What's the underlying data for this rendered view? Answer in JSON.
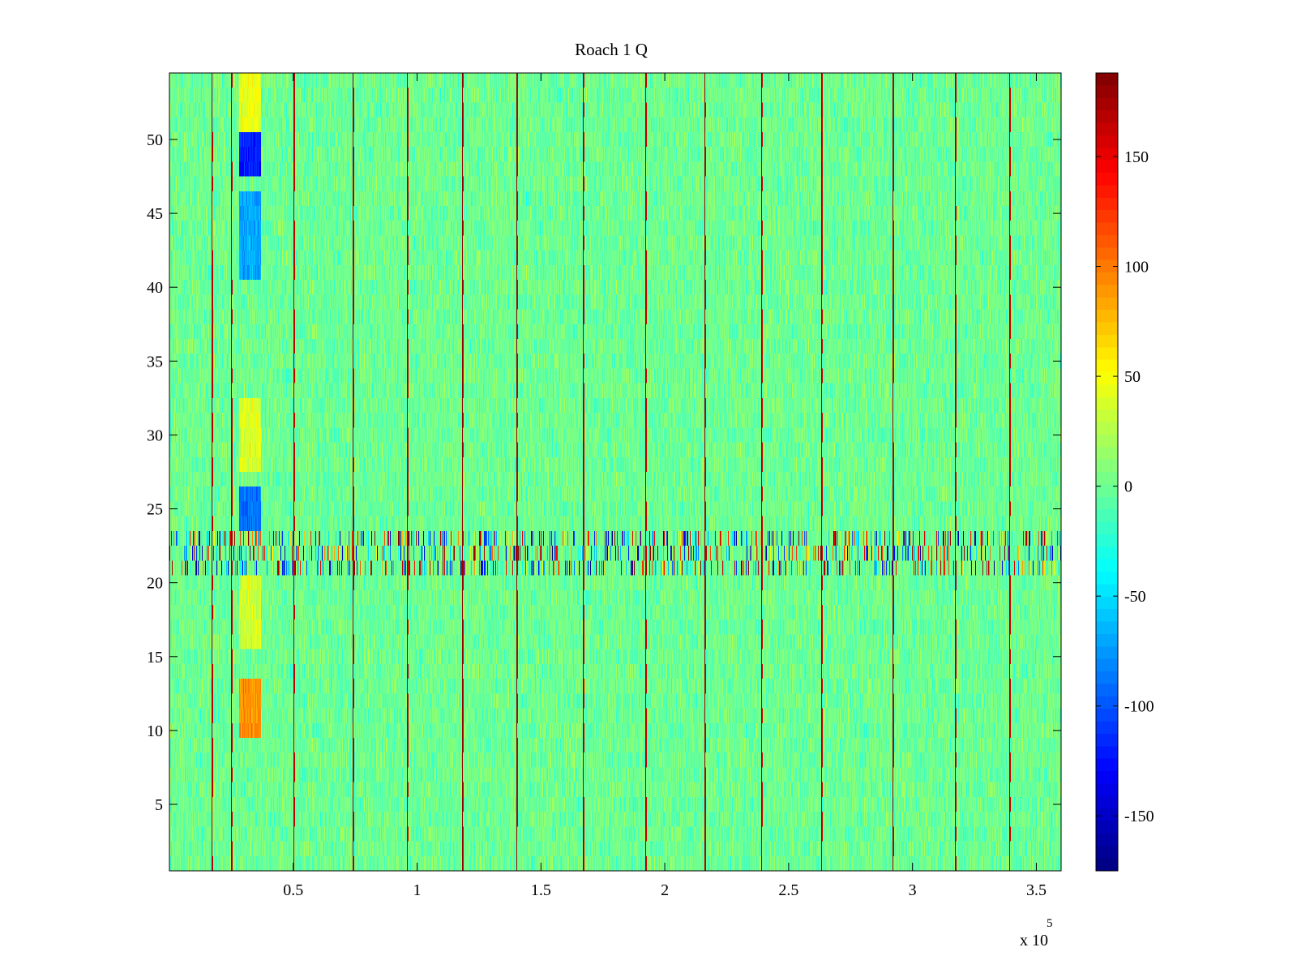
{
  "chart_data": {
    "type": "heatmap",
    "title": "Roach 1 Q",
    "xlabel": "",
    "ylabel": "",
    "x_range": [
      0,
      360000
    ],
    "y_range": [
      0.5,
      54.5
    ],
    "x_exponent_label": "x 10",
    "x_exponent_power": "5",
    "x_ticks": [
      {
        "value": 50000,
        "label": "0.5"
      },
      {
        "value": 100000,
        "label": "1"
      },
      {
        "value": 150000,
        "label": "1.5"
      },
      {
        "value": 200000,
        "label": "2"
      },
      {
        "value": 250000,
        "label": "2.5"
      },
      {
        "value": 300000,
        "label": "3"
      },
      {
        "value": 350000,
        "label": "3.5"
      }
    ],
    "y_ticks": [
      {
        "value": 5,
        "label": "5"
      },
      {
        "value": 10,
        "label": "10"
      },
      {
        "value": 15,
        "label": "15"
      },
      {
        "value": 20,
        "label": "20"
      },
      {
        "value": 25,
        "label": "25"
      },
      {
        "value": 30,
        "label": "30"
      },
      {
        "value": 35,
        "label": "35"
      },
      {
        "value": 40,
        "label": "40"
      },
      {
        "value": 45,
        "label": "45"
      },
      {
        "value": 50,
        "label": "50"
      }
    ],
    "colorbar": {
      "colormap": "jet",
      "range": [
        -175,
        188
      ],
      "ticks": [
        {
          "value": 150,
          "label": "150"
        },
        {
          "value": 100,
          "label": "100"
        },
        {
          "value": 50,
          "label": "50"
        },
        {
          "value": 0,
          "label": "0"
        },
        {
          "value": -50,
          "label": "-50"
        },
        {
          "value": -100,
          "label": "-100"
        },
        {
          "value": -150,
          "label": "-150"
        }
      ]
    },
    "background_level": 0,
    "spike_columns_x": [
      17000,
      25000,
      50000,
      74000,
      96000,
      118000,
      140000,
      167000,
      192000,
      216000,
      239000,
      263000,
      292000,
      317000,
      339000
    ],
    "spike_value": 180,
    "hot_rows": [
      21,
      22,
      23
    ],
    "hot_row_range": [
      -175,
      188
    ],
    "anomalous_patches": [
      {
        "x_range": [
          28000,
          37000
        ],
        "y_range": [
          51,
          54.5
        ],
        "value": 45
      },
      {
        "x_range": [
          28000,
          37000
        ],
        "y_range": [
          48,
          50
        ],
        "value": -120
      },
      {
        "x_range": [
          28000,
          37000
        ],
        "y_range": [
          41,
          46
        ],
        "value": -70
      },
      {
        "x_range": [
          28000,
          37000
        ],
        "y_range": [
          24,
          26
        ],
        "value": -90
      },
      {
        "x_range": [
          28000,
          37000
        ],
        "y_range": [
          28,
          32
        ],
        "value": 40
      },
      {
        "x_range": [
          28000,
          37000
        ],
        "y_range": [
          16,
          20
        ],
        "value": 35
      },
      {
        "x_range": [
          28000,
          37000
        ],
        "y_range": [
          10,
          13
        ],
        "value": 90
      }
    ]
  }
}
